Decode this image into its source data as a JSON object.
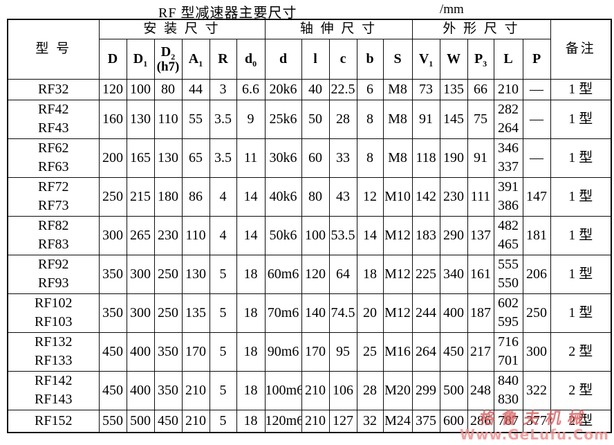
{
  "title": "RF 型减速器主要尺寸",
  "unit": "/mm",
  "table": {
    "model_header": "型 号",
    "remark_header": "备注",
    "groups": [
      {
        "label": "安 装 尺 寸"
      },
      {
        "label": "轴 伸 尺 寸"
      },
      {
        "label": "外 形 尺 寸"
      }
    ],
    "sub_headers": [
      {
        "base": "D",
        "sub": "",
        "note": ""
      },
      {
        "base": "D",
        "sub": "1",
        "note": ""
      },
      {
        "base": "D",
        "sub": "2",
        "note": "(h7)"
      },
      {
        "base": "A",
        "sub": "1",
        "note": ""
      },
      {
        "base": "R",
        "sub": "",
        "note": ""
      },
      {
        "base": "d",
        "sub": "0",
        "note": ""
      },
      {
        "base": "d",
        "sub": "",
        "note": ""
      },
      {
        "base": "l",
        "sub": "",
        "note": ""
      },
      {
        "base": "c",
        "sub": "",
        "note": ""
      },
      {
        "base": "b",
        "sub": "",
        "note": ""
      },
      {
        "base": "S",
        "sub": "",
        "note": ""
      },
      {
        "base": "V",
        "sub": "1",
        "note": ""
      },
      {
        "base": "W",
        "sub": "",
        "note": ""
      },
      {
        "base": "P",
        "sub": "3",
        "note": ""
      },
      {
        "base": "L",
        "sub": "",
        "note": ""
      },
      {
        "base": "P",
        "sub": "",
        "note": ""
      }
    ],
    "col_keys": [
      "D",
      "D1",
      "D2h7",
      "A1",
      "R",
      "d0",
      "d",
      "l",
      "c",
      "b",
      "S",
      "V1",
      "W",
      "P3"
    ],
    "rows": [
      {
        "models": [
          "RF32"
        ],
        "cells": [
          "120",
          "100",
          "80",
          "44",
          "3",
          "6.6",
          "20k6",
          "40",
          "22.5",
          "6",
          "M8",
          "73",
          "135",
          "66"
        ],
        "L": [
          "210"
        ],
        "P": "—",
        "remark": "1 型"
      },
      {
        "models": [
          "RF42",
          "RF43"
        ],
        "cells": [
          "160",
          "130",
          "110",
          "55",
          "3.5",
          "9",
          "25k6",
          "50",
          "28",
          "8",
          "M8",
          "91",
          "145",
          "75"
        ],
        "L": [
          "282",
          "264"
        ],
        "P": "—",
        "remark": "1 型"
      },
      {
        "models": [
          "RF62",
          "RF63"
        ],
        "cells": [
          "200",
          "165",
          "130",
          "65",
          "3.5",
          "11",
          "30k6",
          "60",
          "33",
          "8",
          "M8",
          "118",
          "190",
          "91"
        ],
        "L": [
          "346",
          "337"
        ],
        "P": "—",
        "remark": "1 型"
      },
      {
        "models": [
          "RF72",
          "RF73"
        ],
        "cells": [
          "250",
          "215",
          "180",
          "86",
          "4",
          "14",
          "40k6",
          "80",
          "43",
          "12",
          "M10",
          "142",
          "230",
          "111"
        ],
        "L": [
          "391",
          "386"
        ],
        "P": "147",
        "remark": "1 型"
      },
      {
        "models": [
          "RF82",
          "RF83"
        ],
        "cells": [
          "300",
          "265",
          "230",
          "110",
          "4",
          "14",
          "50k6",
          "100",
          "53.5",
          "14",
          "M12",
          "183",
          "290",
          "137"
        ],
        "L": [
          "482",
          "465"
        ],
        "P": "181",
        "remark": "1 型"
      },
      {
        "models": [
          "RF92",
          "RF93"
        ],
        "cells": [
          "350",
          "300",
          "250",
          "130",
          "5",
          "18",
          "60m6",
          "120",
          "64",
          "18",
          "M12",
          "225",
          "340",
          "161"
        ],
        "L": [
          "555",
          "550"
        ],
        "P": "206",
        "remark": "1 型"
      },
      {
        "models": [
          "RF102",
          "RF103"
        ],
        "cells": [
          "350",
          "300",
          "250",
          "135",
          "5",
          "18",
          "70m6",
          "140",
          "74.5",
          "20",
          "M12",
          "244",
          "400",
          "187"
        ],
        "L": [
          "602",
          "595"
        ],
        "P": "250",
        "remark": "1 型"
      },
      {
        "models": [
          "RF132",
          "RF133"
        ],
        "cells": [
          "450",
          "400",
          "350",
          "170",
          "5",
          "18",
          "90m6",
          "170",
          "95",
          "25",
          "M16",
          "264",
          "450",
          "217"
        ],
        "L": [
          "716",
          "701"
        ],
        "P": "300",
        "remark": "2 型"
      },
      {
        "models": [
          "RF142",
          "RF143"
        ],
        "cells": [
          "450",
          "400",
          "350",
          "210",
          "5",
          "18",
          "100m6",
          "210",
          "106",
          "28",
          "M20",
          "299",
          "500",
          "248"
        ],
        "L": [
          "840",
          "830"
        ],
        "P": "322",
        "remark": "2 型"
      },
      {
        "models": [
          "RF152"
        ],
        "cells": [
          "550",
          "500",
          "450",
          "210",
          "5",
          "18",
          "120m6",
          "210",
          "127",
          "32",
          "M24",
          "375",
          "600",
          "286"
        ],
        "L": [
          "787"
        ],
        "P": "377",
        "remark": "2 型"
      }
    ]
  },
  "watermark": {
    "line1": "格鲁夫机械",
    "line2": "Www.GeLufu.Com",
    "color": "#d65c5c"
  }
}
